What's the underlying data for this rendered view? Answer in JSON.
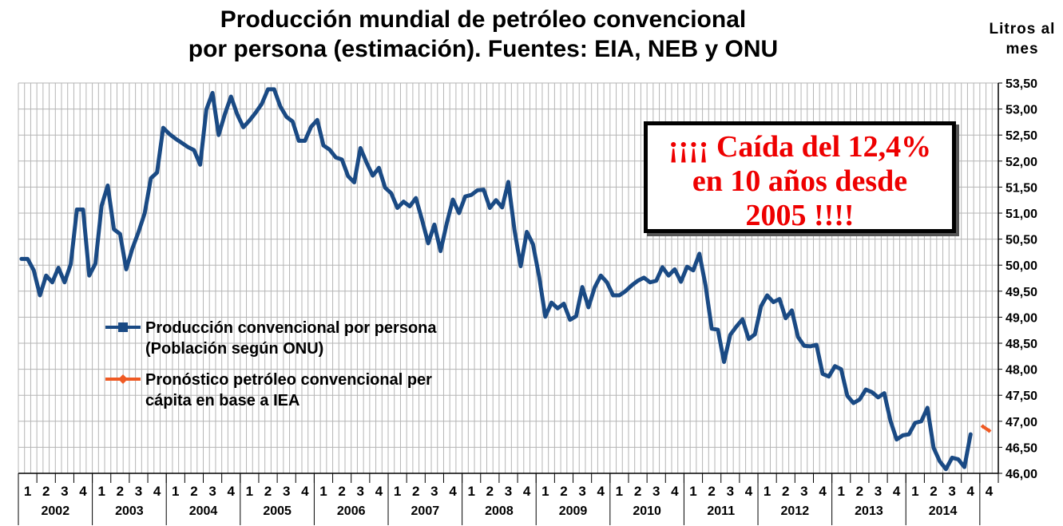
{
  "chart_data": {
    "type": "line",
    "title": "Producción mundial de petróleo convencional por persona (estimación). Fuentes: EIA, NEB y ONU",
    "title_lines": [
      "Producción mundial de petróleo convencional",
      "por persona (estimación). Fuentes: EIA, NEB y ONU"
    ],
    "ylabel": "Litros al mes",
    "ylim": [
      46.0,
      53.5
    ],
    "y_ticks": [
      "46,00",
      "46,50",
      "47,00",
      "47,50",
      "48,00",
      "48,50",
      "49,00",
      "49,50",
      "50,00",
      "50,50",
      "51,00",
      "51,50",
      "52,00",
      "52,50",
      "53,00",
      "53,50"
    ],
    "y_tick_values": [
      46.0,
      46.5,
      47.0,
      47.5,
      48.0,
      48.5,
      49.0,
      49.5,
      50.0,
      50.5,
      51.0,
      51.5,
      52.0,
      52.5,
      53.0,
      53.5
    ],
    "grid": true,
    "x_quarter_labels": [
      "1",
      "2",
      "3",
      "4",
      "1",
      "2",
      "3",
      "4",
      "1",
      "2",
      "3",
      "4",
      "1",
      "2",
      "3",
      "4",
      "1",
      "2",
      "3",
      "4",
      "1",
      "2",
      "3",
      "4",
      "1",
      "2",
      "3",
      "4",
      "1",
      "2",
      "3",
      "4",
      "1",
      "2",
      "3",
      "4",
      "1",
      "2",
      "3",
      "4",
      "1",
      "2",
      "3",
      "4",
      "1",
      "2",
      "3",
      "4",
      "1",
      "2",
      "3",
      "4",
      "4"
    ],
    "x_year_labels": [
      "2002",
      "2003",
      "2004",
      "2005",
      "2006",
      "2007",
      "2008",
      "2009",
      "2010",
      "2011",
      "2012",
      "2013",
      "2014"
    ],
    "months_per_year": 12,
    "x_domain_months": 159,
    "series": [
      {
        "name": "Producción convencional por persona (Población según ONU)",
        "color": "#1a4a84",
        "values": [
          50.12,
          50.12,
          49.9,
          49.42,
          49.8,
          49.67,
          49.95,
          49.67,
          50.02,
          51.07,
          51.07,
          49.8,
          50.03,
          51.14,
          51.53,
          50.69,
          50.6,
          49.92,
          50.32,
          50.64,
          51.0,
          51.67,
          51.78,
          52.64,
          52.52,
          52.43,
          52.35,
          52.27,
          52.21,
          51.93,
          52.99,
          53.31,
          52.5,
          52.9,
          53.24,
          52.9,
          52.65,
          52.78,
          52.93,
          53.1,
          53.38,
          53.38,
          53.05,
          52.85,
          52.76,
          52.39,
          52.39,
          52.66,
          52.79,
          52.3,
          52.22,
          52.07,
          52.03,
          51.71,
          51.59,
          52.25,
          51.97,
          51.72,
          51.87,
          51.49,
          51.38,
          51.1,
          51.22,
          51.13,
          51.29,
          50.87,
          50.42,
          50.78,
          50.27,
          50.8,
          51.26,
          51.0,
          51.32,
          51.35,
          51.44,
          51.45,
          51.1,
          51.25,
          51.11,
          51.6,
          50.67,
          49.98,
          50.64,
          50.4,
          49.78,
          49.01,
          49.28,
          49.17,
          49.26,
          48.95,
          49.02,
          49.58,
          49.19,
          49.57,
          49.8,
          49.67,
          49.42,
          49.42,
          49.5,
          49.61,
          49.7,
          49.76,
          49.67,
          49.7,
          49.96,
          49.8,
          49.92,
          49.68,
          49.97,
          49.9,
          50.22,
          49.61,
          48.78,
          48.76,
          48.14,
          48.66,
          48.82,
          48.96,
          48.58,
          48.67,
          49.21,
          49.42,
          49.29,
          49.35,
          48.98,
          49.13,
          48.62,
          48.45,
          48.44,
          48.47,
          47.91,
          47.86,
          48.06,
          48.0,
          47.49,
          47.35,
          47.42,
          47.61,
          47.56,
          47.46,
          47.54,
          47.01,
          46.65,
          46.73,
          46.75,
          46.97,
          47.0,
          47.26,
          46.49,
          46.23,
          46.08,
          46.3,
          46.27,
          46.12,
          46.75
        ]
      },
      {
        "name": "Pronóstico petróleo convencional per cápita en base a IEA",
        "color": "#ef5a24",
        "start_month_index": 156,
        "values": [
          46.9,
          46.82
        ]
      }
    ],
    "legend_position": "left-middle",
    "annotation": "¡¡¡¡ Caída del 12,4% en 10 años desde 2005 !!!!",
    "annotation_lines": [
      "¡¡¡¡ Caída del 12,4%",
      "en 10 años desde",
      "2005 !!!!"
    ]
  },
  "legend": [
    {
      "label": "Producción convencional por persona\n(Población según ONU)",
      "color": "#1a4a84",
      "marker": "square"
    },
    {
      "label": "Pronóstico petróleo convencional per\ncápita en base a IEA",
      "color": "#ef5a24",
      "marker": "diamond"
    }
  ],
  "colors": {
    "grid": "#b5b5b5",
    "axis": "#000000",
    "callout_text": "#ee0000"
  }
}
